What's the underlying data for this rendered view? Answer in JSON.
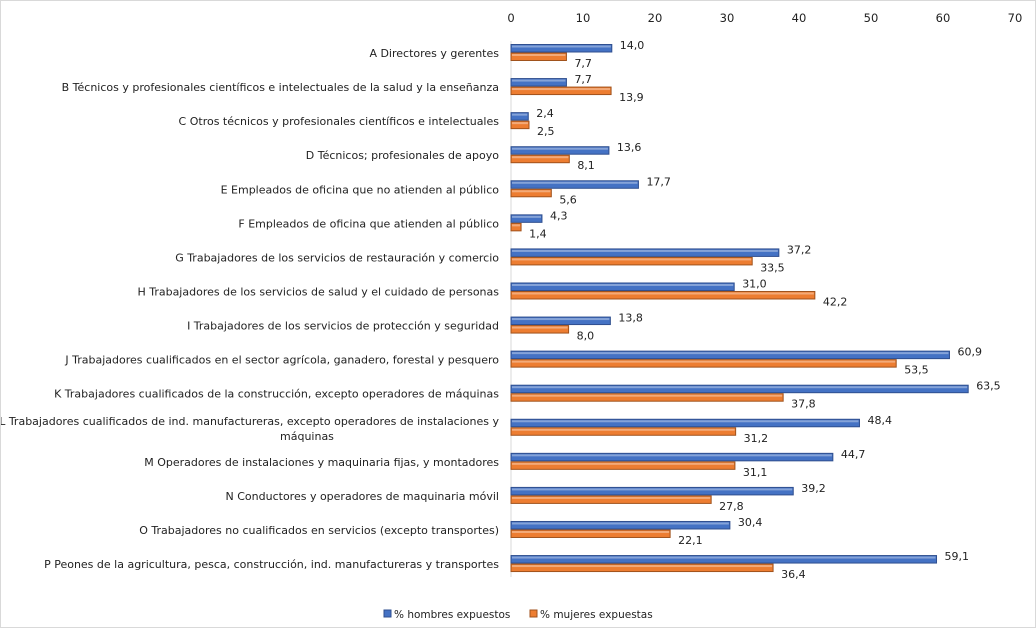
{
  "chart_data": {
    "type": "bar",
    "orientation": "horizontal",
    "title": "",
    "xlabel": "",
    "ylabel": "",
    "xlim": [
      0,
      70
    ],
    "xticks": [
      0,
      10,
      20,
      30,
      40,
      50,
      60,
      70
    ],
    "axis_position": "top",
    "grid": false,
    "legend_position": "bottom",
    "categories": [
      "A Directores y gerentes",
      "B Técnicos y profesionales científicos e intelectuales de la salud y la enseñanza",
      "C Otros técnicos y profesionales científicos e intelectuales",
      "D Técnicos; profesionales de apoyo",
      "E Empleados de oficina que no atienden al público",
      "F Empleados de oficina que atienden al público",
      "G Trabajadores de los servicios de restauración y comercio",
      "H Trabajadores de los servicios de salud y el cuidado de personas",
      "I Trabajadores de los servicios de protección y seguridad",
      "J Trabajadores cualificados en el sector agrícola, ganadero, forestal y pesquero",
      "K Trabajadores cualificados de la construcción, excepto operadores de máquinas",
      "L Trabajadores cualificados de ind. manufactureras, excepto operadores de instalaciones y|máquinas",
      "M Operadores de instalaciones y maquinaria fijas, y montadores",
      "N Conductores y operadores de maquinaria móvil",
      "O Trabajadores no cualificados en servicios (excepto transportes)",
      "P Peones de la agricultura, pesca, construcción, ind. manufactureras y transportes"
    ],
    "series": [
      {
        "name": "% hombres expuestos",
        "color": "#4472c4",
        "values": [
          14.0,
          7.7,
          2.4,
          13.6,
          17.7,
          4.3,
          37.2,
          31.0,
          13.8,
          60.9,
          63.5,
          48.4,
          44.7,
          39.2,
          30.4,
          59.1
        ],
        "labels": [
          "14,0",
          "7,7",
          "2,4",
          "13,6",
          "17,7",
          "4,3",
          "37,2",
          "31,0",
          "13,8",
          "60,9",
          "63,5",
          "48,4",
          "44,7",
          "39,2",
          "30,4",
          "59,1"
        ]
      },
      {
        "name": "% mujeres expuestas",
        "color": "#ed7d31",
        "values": [
          7.7,
          13.9,
          2.5,
          8.1,
          5.6,
          1.4,
          33.5,
          42.2,
          8.0,
          53.5,
          37.8,
          31.2,
          31.1,
          27.8,
          22.1,
          36.4
        ],
        "labels": [
          "7,7",
          "13,9",
          "2,5",
          "8,1",
          "5,6",
          "1,4",
          "33,5",
          "42,2",
          "8,0",
          "53,5",
          "37,8",
          "31,2",
          "31,1",
          "27,8",
          "22,1",
          "36,4"
        ]
      }
    ]
  }
}
